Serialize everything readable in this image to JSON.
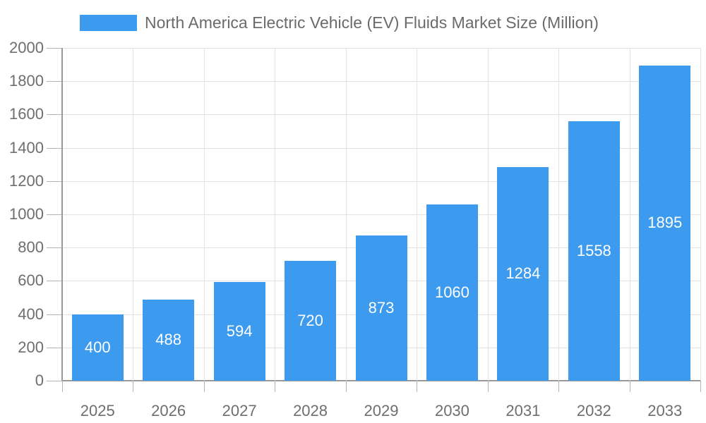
{
  "chart_data": {
    "type": "bar",
    "title": "North America Electric Vehicle (EV) Fluids Market Size (Million)",
    "legend_position": "top",
    "categories": [
      "2025",
      "2026",
      "2027",
      "2028",
      "2029",
      "2030",
      "2031",
      "2032",
      "2033"
    ],
    "series": [
      {
        "name": "North America Electric Vehicle (EV) Fluids Market Size (Million)",
        "values": [
          400,
          488,
          594,
          720,
          873,
          1060,
          1284,
          1558,
          1895
        ]
      }
    ],
    "xlabel": "",
    "ylabel": "",
    "ylim": [
      0,
      2000
    ],
    "ytick_interval": 200,
    "yticks": [
      0,
      200,
      400,
      600,
      800,
      1000,
      1200,
      1400,
      1600,
      1800,
      2000
    ],
    "grid": true,
    "bar_labels_visible": true,
    "colors": {
      "bar": "#3c9aef",
      "grid": "#e3e3e3",
      "axis": "#999999",
      "tick": "#b3b3b3",
      "tick_text": "#6e6e6e",
      "title_text": "#6b6b6b",
      "bar_label_text": "#ffffff"
    }
  }
}
